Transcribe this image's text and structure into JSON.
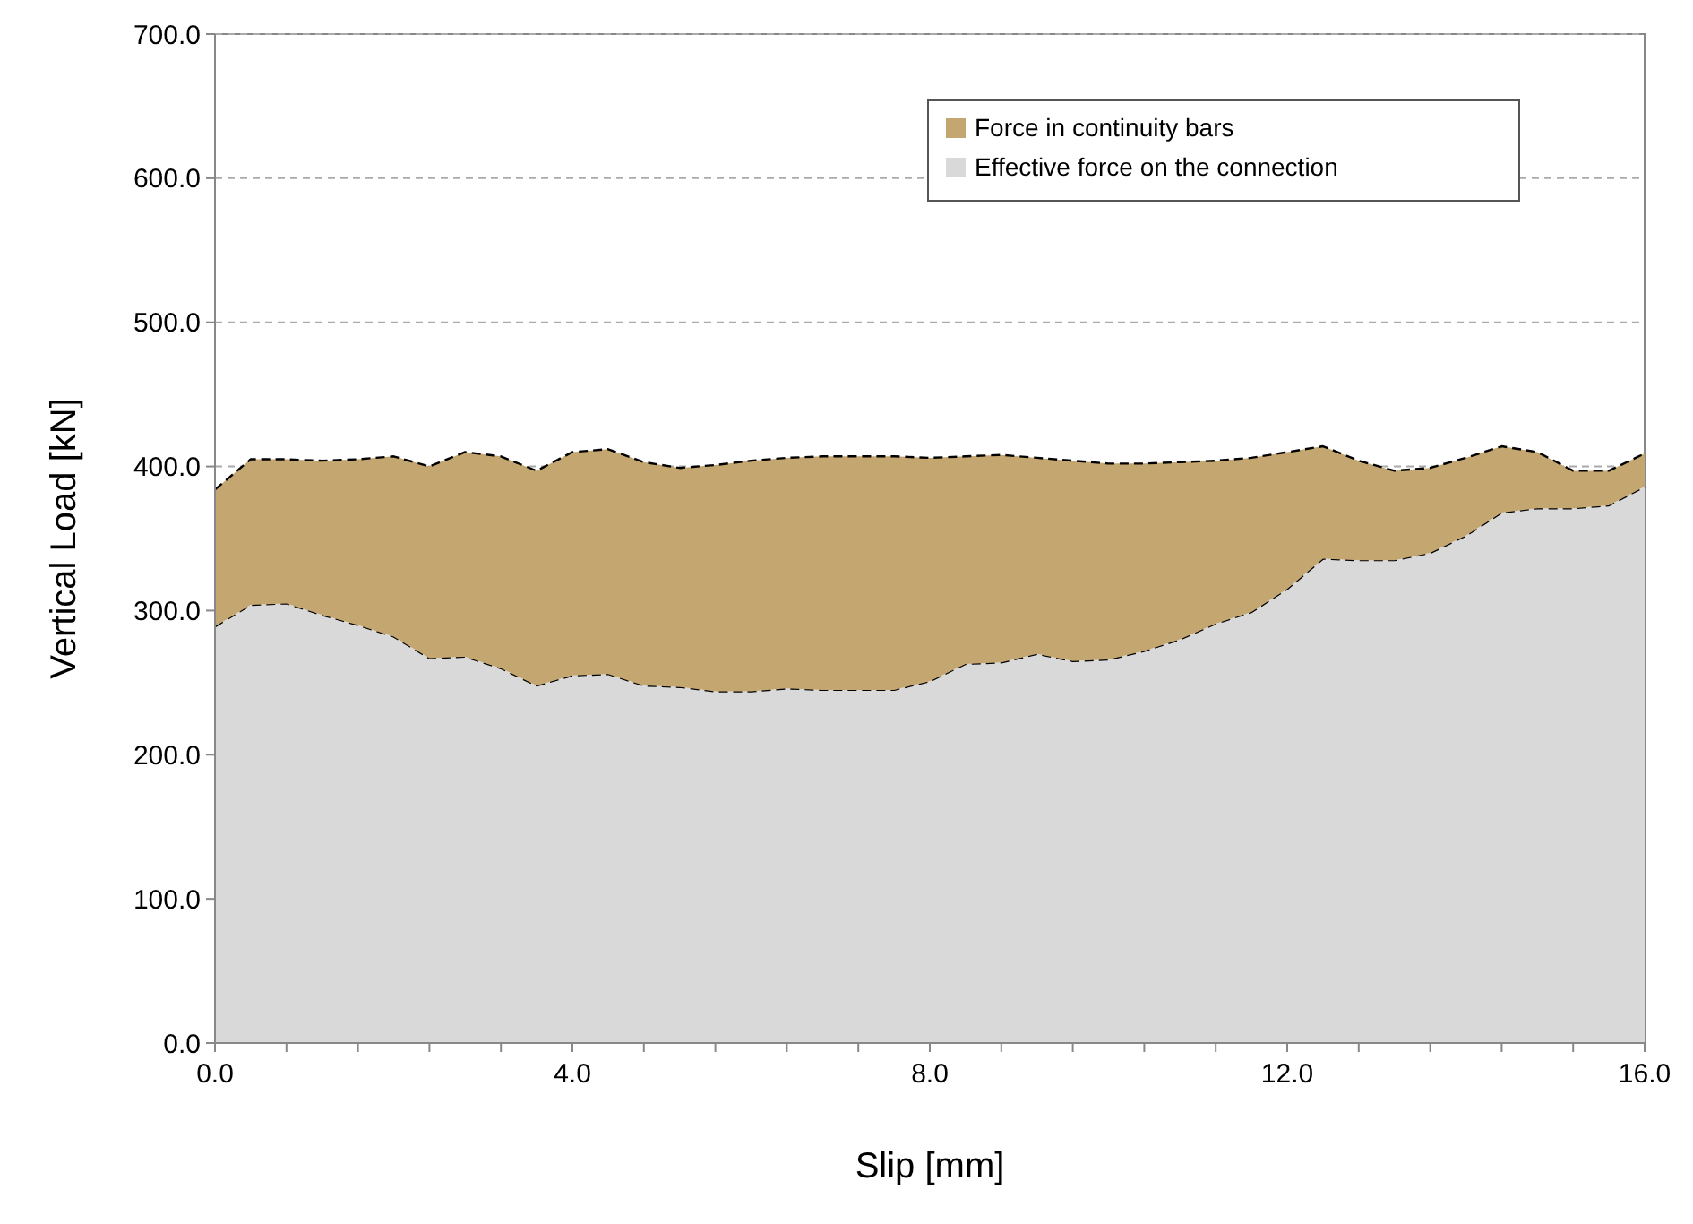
{
  "chart_data": {
    "type": "area",
    "stacked": true,
    "xlabel": "Slip [mm]",
    "ylabel": "Vertical Load [kN]",
    "x": [
      0,
      0.4,
      0.8,
      1.2,
      1.6,
      2.0,
      2.4,
      2.8,
      3.2,
      3.6,
      4.0,
      4.4,
      4.8,
      5.2,
      5.6,
      6.0,
      6.4,
      6.8,
      7.2,
      7.6,
      8.0,
      8.4,
      8.8,
      9.2,
      9.6,
      10.0,
      10.4,
      10.8,
      11.2,
      11.6,
      12.0,
      12.4,
      12.8,
      13.2,
      13.6,
      14.0,
      14.4,
      14.8,
      15.2,
      15.6,
      16.0
    ],
    "series": [
      {
        "name": "Effective force on the connection",
        "color": "#d9d9d9",
        "values": [
          289,
          304,
          305,
          297,
          290,
          282,
          267,
          268,
          260,
          248,
          255,
          256,
          248,
          247,
          244,
          244,
          246,
          245,
          245,
          245,
          251,
          263,
          264,
          270,
          265,
          266,
          272,
          280,
          291,
          299,
          315,
          336,
          335,
          335,
          340,
          352,
          368,
          371,
          371,
          373,
          386
        ]
      },
      {
        "name": "Force in continuity bars",
        "color": "#c4a670",
        "values": [
          95,
          101,
          100,
          107,
          115,
          125,
          133,
          142,
          147,
          149,
          155,
          156,
          155,
          152,
          157,
          160,
          160,
          162,
          162,
          162,
          155,
          144,
          144,
          136,
          139,
          136,
          130,
          123,
          113,
          107,
          95,
          78,
          69,
          62,
          59,
          54,
          46,
          39,
          26,
          24,
          23
        ]
      }
    ],
    "line_style": "dashed",
    "legend": "top right",
    "grid": "y",
    "xlim": [
      0,
      16
    ],
    "xticks": [
      {
        "value": 0,
        "label": "0.0"
      },
      {
        "value": 0.8,
        "label": null
      },
      {
        "value": 1.6,
        "label": null
      },
      {
        "value": 2.4,
        "label": null
      },
      {
        "value": 3.2,
        "label": null
      },
      {
        "value": 4,
        "label": "4.0"
      },
      {
        "value": 4.8,
        "label": null
      },
      {
        "value": 5.6,
        "label": null
      },
      {
        "value": 6.4,
        "label": null
      },
      {
        "value": 7.2,
        "label": null
      },
      {
        "value": 8,
        "label": "8.0"
      },
      {
        "value": 8.8,
        "label": null
      },
      {
        "value": 9.6,
        "label": null
      },
      {
        "value": 10.4,
        "label": null
      },
      {
        "value": 11.2,
        "label": null
      },
      {
        "value": 12,
        "label": "12.0"
      },
      {
        "value": 12.8,
        "label": null
      },
      {
        "value": 13.6,
        "label": null
      },
      {
        "value": 14.4,
        "label": null
      },
      {
        "value": 15.2,
        "label": null
      },
      {
        "value": 16,
        "label": "16.0"
      }
    ],
    "ylim": [
      0,
      700
    ],
    "yticks": [
      {
        "value": 0,
        "label": "0.0"
      },
      {
        "value": 100,
        "label": "100.0"
      },
      {
        "value": 200,
        "label": "200.0"
      },
      {
        "value": 300,
        "label": "300.0"
      },
      {
        "value": 400,
        "label": "400.0"
      },
      {
        "value": 500,
        "label": "500.0"
      },
      {
        "value": 600,
        "label": "600.0"
      },
      {
        "value": 700,
        "label": "700.0"
      }
    ]
  }
}
